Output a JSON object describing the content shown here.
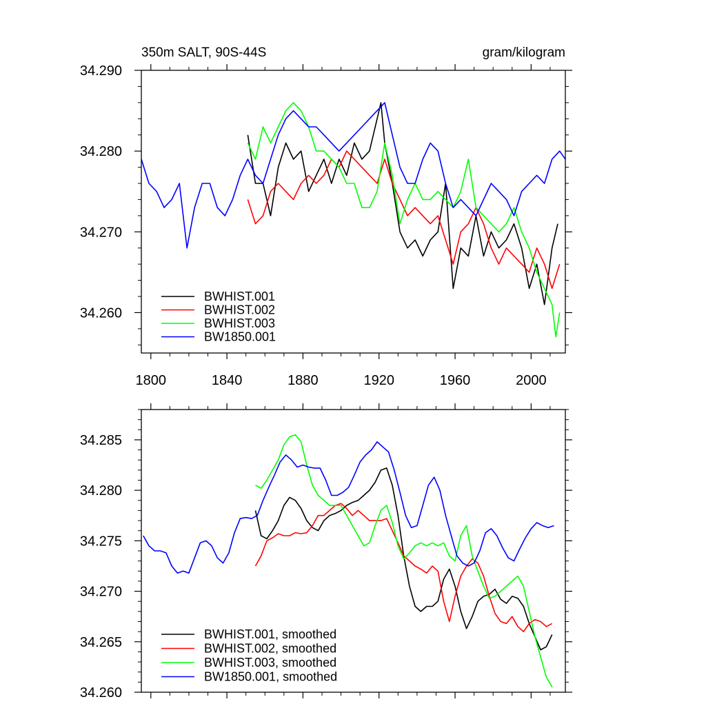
{
  "chart_data": [
    {
      "type": "line",
      "title": "350m SALT, 90S-44S",
      "units": "gram/kilogram",
      "xlabel": "",
      "ylabel": "",
      "xlim": [
        1795,
        2018
      ],
      "ylim": [
        34.255,
        34.29
      ],
      "xticks": [
        1800,
        1840,
        1880,
        1920,
        1960,
        2000
      ],
      "xtick_labels": [
        "1800",
        "1840",
        "1880",
        "1920",
        "1960",
        "2000"
      ],
      "yticks": [
        34.26,
        34.27,
        34.28,
        34.29
      ],
      "ytick_labels": [
        "34.260",
        "34.270",
        "34.280",
        "34.290"
      ],
      "legend_position": "bottom-left",
      "series": [
        {
          "name": "BWHIST.001",
          "color": "#000000",
          "x": [
            1851,
            1855,
            1859,
            1863,
            1867,
            1871,
            1875,
            1879,
            1883,
            1887,
            1891,
            1895,
            1899,
            1903,
            1907,
            1911,
            1915,
            1919,
            1921,
            1923,
            1927,
            1931,
            1935,
            1939,
            1943,
            1947,
            1951,
            1955,
            1959,
            1963,
            1967,
            1971,
            1975,
            1979,
            1983,
            1987,
            1991,
            1995,
            1999,
            2003,
            2007,
            2011,
            2014
          ],
          "y": [
            34.282,
            34.276,
            34.276,
            34.272,
            34.278,
            34.281,
            34.279,
            34.28,
            34.275,
            34.277,
            34.279,
            34.276,
            34.279,
            34.277,
            34.281,
            34.279,
            34.28,
            34.284,
            34.286,
            34.281,
            34.276,
            34.27,
            34.268,
            34.269,
            34.267,
            34.269,
            34.27,
            34.276,
            34.263,
            34.268,
            34.267,
            34.272,
            34.267,
            34.27,
            34.268,
            34.269,
            34.271,
            34.268,
            34.263,
            34.266,
            34.261,
            34.268,
            34.271
          ]
        },
        {
          "name": "BWHIST.002",
          "color": "#ff0000",
          "x": [
            1851,
            1855,
            1859,
            1863,
            1867,
            1871,
            1875,
            1879,
            1883,
            1887,
            1891,
            1895,
            1899,
            1903,
            1907,
            1911,
            1915,
            1919,
            1923,
            1927,
            1931,
            1935,
            1939,
            1943,
            1947,
            1951,
            1955,
            1959,
            1963,
            1967,
            1971,
            1975,
            1979,
            1983,
            1987,
            1991,
            1995,
            1999,
            2003,
            2007,
            2011,
            2015
          ],
          "y": [
            34.274,
            34.271,
            34.272,
            34.275,
            34.276,
            34.275,
            34.274,
            34.276,
            34.277,
            34.276,
            34.277,
            34.279,
            34.278,
            34.28,
            34.279,
            34.278,
            34.277,
            34.276,
            34.279,
            34.276,
            34.274,
            34.272,
            34.273,
            34.272,
            34.271,
            34.272,
            34.269,
            34.266,
            34.27,
            34.271,
            34.273,
            34.271,
            34.268,
            34.266,
            34.268,
            34.267,
            34.266,
            34.265,
            34.268,
            34.266,
            34.263,
            34.266
          ]
        },
        {
          "name": "BWHIST.003",
          "color": "#00ff00",
          "x": [
            1851,
            1855,
            1859,
            1863,
            1867,
            1871,
            1875,
            1879,
            1883,
            1887,
            1891,
            1895,
            1899,
            1903,
            1907,
            1911,
            1915,
            1919,
            1923,
            1927,
            1931,
            1935,
            1939,
            1943,
            1947,
            1951,
            1955,
            1959,
            1963,
            1967,
            1971,
            1975,
            1979,
            1983,
            1987,
            1991,
            1995,
            1999,
            2003,
            2007,
            2011,
            2013,
            2015
          ],
          "y": [
            34.281,
            34.279,
            34.283,
            34.281,
            34.283,
            34.285,
            34.286,
            34.285,
            34.283,
            34.28,
            34.28,
            34.279,
            34.278,
            34.276,
            34.276,
            34.273,
            34.273,
            34.275,
            34.281,
            34.277,
            34.271,
            34.274,
            34.276,
            34.274,
            34.274,
            34.275,
            34.274,
            34.273,
            34.275,
            34.279,
            34.273,
            34.272,
            34.271,
            34.27,
            34.271,
            34.273,
            34.27,
            34.268,
            34.265,
            34.263,
            34.261,
            34.257,
            34.26
          ]
        },
        {
          "name": "BW1850.001",
          "color": "#0000ff",
          "x": [
            1795,
            1799,
            1803,
            1807,
            1811,
            1815,
            1819,
            1823,
            1827,
            1831,
            1835,
            1839,
            1843,
            1847,
            1851,
            1855,
            1859,
            1863,
            1867,
            1871,
            1875,
            1879,
            1883,
            1887,
            1891,
            1895,
            1899,
            1903,
            1907,
            1911,
            1915,
            1919,
            1923,
            1927,
            1931,
            1935,
            1939,
            1943,
            1947,
            1951,
            1955,
            1959,
            1963,
            1967,
            1971,
            1975,
            1979,
            1983,
            1987,
            1991,
            1995,
            1999,
            2003,
            2007,
            2011,
            2015,
            2018
          ],
          "y": [
            34.279,
            34.276,
            34.275,
            34.273,
            34.274,
            34.276,
            34.268,
            34.273,
            34.276,
            34.276,
            34.273,
            34.272,
            34.274,
            34.277,
            34.279,
            34.277,
            34.276,
            34.279,
            34.282,
            34.284,
            34.285,
            34.284,
            34.283,
            34.283,
            34.282,
            34.281,
            34.28,
            34.281,
            34.282,
            34.283,
            34.284,
            34.285,
            34.286,
            34.282,
            34.278,
            34.276,
            34.276,
            34.279,
            34.281,
            34.28,
            34.276,
            34.273,
            34.274,
            34.273,
            34.272,
            34.274,
            34.276,
            34.275,
            34.274,
            34.272,
            34.275,
            34.276,
            34.277,
            34.276,
            34.279,
            34.28,
            34.279
          ]
        }
      ]
    },
    {
      "type": "line",
      "title": "",
      "xlabel": "",
      "ylabel": "",
      "xlim": [
        1795,
        2018
      ],
      "ylim": [
        34.26,
        34.288
      ],
      "xticks": [
        1800,
        1840,
        1880,
        1920,
        1960,
        2000
      ],
      "yticks": [
        34.26,
        34.265,
        34.27,
        34.275,
        34.28,
        34.285
      ],
      "ytick_labels": [
        "34.260",
        "34.265",
        "34.270",
        "34.275",
        "34.280",
        "34.285"
      ],
      "legend_position": "bottom-left",
      "series": [
        {
          "name": "BWHIST.001, smoothed",
          "color": "#000000",
          "x": [
            1855,
            1858,
            1861,
            1864,
            1867,
            1870,
            1873,
            1876,
            1879,
            1882,
            1885,
            1888,
            1891,
            1894,
            1897,
            1900,
            1903,
            1906,
            1909,
            1912,
            1915,
            1918,
            1921,
            1924,
            1927,
            1930,
            1933,
            1936,
            1939,
            1942,
            1945,
            1948,
            1951,
            1954,
            1957,
            1960,
            1963,
            1966,
            1969,
            1972,
            1975,
            1978,
            1981,
            1984,
            1987,
            1990,
            1993,
            1996,
            1999,
            2002,
            2005,
            2008,
            2011
          ],
          "y": [
            34.278,
            34.2755,
            34.2752,
            34.276,
            34.277,
            34.2785,
            34.2793,
            34.279,
            34.2782,
            34.277,
            34.2763,
            34.276,
            34.277,
            34.2775,
            34.2777,
            34.278,
            34.2785,
            34.2788,
            34.279,
            34.2795,
            34.28,
            34.2808,
            34.282,
            34.2822,
            34.2805,
            34.2775,
            34.2735,
            34.2705,
            34.2685,
            34.268,
            34.2685,
            34.2685,
            34.269,
            34.2712,
            34.2722,
            34.2705,
            34.268,
            34.2663,
            34.2675,
            34.269,
            34.2695,
            34.2697,
            34.2702,
            34.2692,
            34.2688,
            34.2695,
            34.2693,
            34.2685,
            34.2668,
            34.2655,
            34.2642,
            34.2645,
            34.2657
          ]
        },
        {
          "name": "BWHIST.002, smoothed",
          "color": "#ff0000",
          "x": [
            1855,
            1858,
            1861,
            1864,
            1867,
            1870,
            1873,
            1876,
            1879,
            1882,
            1885,
            1888,
            1891,
            1894,
            1897,
            1900,
            1903,
            1906,
            1909,
            1912,
            1915,
            1918,
            1921,
            1924,
            1927,
            1930,
            1933,
            1936,
            1939,
            1942,
            1945,
            1948,
            1951,
            1954,
            1957,
            1960,
            1963,
            1966,
            1969,
            1972,
            1975,
            1978,
            1981,
            1984,
            1987,
            1990,
            1993,
            1996,
            1999,
            2002,
            2005,
            2008,
            2011
          ],
          "y": [
            34.2725,
            34.2735,
            34.275,
            34.2753,
            34.2757,
            34.2755,
            34.2755,
            34.2758,
            34.2757,
            34.2758,
            34.2765,
            34.2775,
            34.2775,
            34.278,
            34.2785,
            34.2787,
            34.2782,
            34.2775,
            34.278,
            34.2775,
            34.277,
            34.277,
            34.277,
            34.2772,
            34.276,
            34.2748,
            34.2735,
            34.273,
            34.2725,
            34.2722,
            34.2718,
            34.2725,
            34.272,
            34.269,
            34.267,
            34.2695,
            34.2715,
            34.2725,
            34.2732,
            34.2728,
            34.2715,
            34.2695,
            34.2678,
            34.267,
            34.2668,
            34.2675,
            34.2665,
            34.266,
            34.2668,
            34.2672,
            34.267,
            34.2665,
            34.2668
          ]
        },
        {
          "name": "BWHIST.003, smoothed",
          "color": "#00ff00",
          "x": [
            1855,
            1858,
            1861,
            1864,
            1867,
            1870,
            1873,
            1876,
            1879,
            1882,
            1885,
            1888,
            1891,
            1894,
            1897,
            1900,
            1903,
            1906,
            1909,
            1912,
            1915,
            1918,
            1921,
            1924,
            1927,
            1930,
            1933,
            1936,
            1939,
            1942,
            1945,
            1948,
            1951,
            1954,
            1957,
            1960,
            1963,
            1966,
            1969,
            1972,
            1975,
            1978,
            1981,
            1984,
            1987,
            1990,
            1993,
            1996,
            1999,
            2002,
            2005,
            2008,
            2011
          ],
          "y": [
            34.2805,
            34.2802,
            34.281,
            34.282,
            34.283,
            34.2845,
            34.2853,
            34.2855,
            34.2848,
            34.2825,
            34.2805,
            34.2795,
            34.279,
            34.2785,
            34.2785,
            34.2785,
            34.2775,
            34.2765,
            34.2755,
            34.2745,
            34.2748,
            34.2765,
            34.278,
            34.2785,
            34.2768,
            34.2745,
            34.2732,
            34.2738,
            34.2745,
            34.2748,
            34.2745,
            34.2748,
            34.2745,
            34.2748,
            34.2735,
            34.273,
            34.2755,
            34.2765,
            34.2735,
            34.272,
            34.2705,
            34.2693,
            34.2695,
            34.27,
            34.2705,
            34.271,
            34.2715,
            34.2705,
            34.268,
            34.2655,
            34.2635,
            34.2615,
            34.2605
          ]
        },
        {
          "name": "BW1850.001, smoothed",
          "color": "#0000ff",
          "x": [
            1796,
            1799,
            1802,
            1805,
            1808,
            1811,
            1814,
            1817,
            1820,
            1823,
            1826,
            1829,
            1832,
            1835,
            1838,
            1841,
            1844,
            1847,
            1850,
            1853,
            1856,
            1859,
            1862,
            1865,
            1868,
            1871,
            1874,
            1877,
            1880,
            1883,
            1886,
            1889,
            1892,
            1895,
            1898,
            1901,
            1904,
            1907,
            1910,
            1913,
            1916,
            1919,
            1922,
            1925,
            1928,
            1931,
            1934,
            1937,
            1940,
            1943,
            1946,
            1949,
            1952,
            1955,
            1958,
            1961,
            1964,
            1967,
            1970,
            1973,
            1976,
            1979,
            1982,
            1985,
            1988,
            1991,
            1994,
            1997,
            2000,
            2003,
            2006,
            2009,
            2012
          ],
          "y": [
            34.2755,
            34.2745,
            34.274,
            34.274,
            34.2738,
            34.2725,
            34.2718,
            34.272,
            34.2718,
            34.2733,
            34.2748,
            34.275,
            34.2745,
            34.2733,
            34.2728,
            34.2738,
            34.2758,
            34.2772,
            34.2773,
            34.2772,
            34.2775,
            34.279,
            34.2803,
            34.2815,
            34.2828,
            34.2835,
            34.283,
            34.2823,
            34.2825,
            34.2823,
            34.2822,
            34.2822,
            34.281,
            34.2795,
            34.2795,
            34.2798,
            34.2803,
            34.2815,
            34.2828,
            34.2835,
            34.284,
            34.2848,
            34.2843,
            34.2838,
            34.282,
            34.2798,
            34.2775,
            34.2763,
            34.2765,
            34.2785,
            34.2805,
            34.2813,
            34.28,
            34.2775,
            34.2755,
            34.2735,
            34.2728,
            34.2725,
            34.2728,
            34.274,
            34.2758,
            34.2762,
            34.2755,
            34.2743,
            34.2733,
            34.273,
            34.2742,
            34.2753,
            34.2762,
            34.2768,
            34.2765,
            34.2763,
            34.2765
          ]
        }
      ]
    }
  ]
}
